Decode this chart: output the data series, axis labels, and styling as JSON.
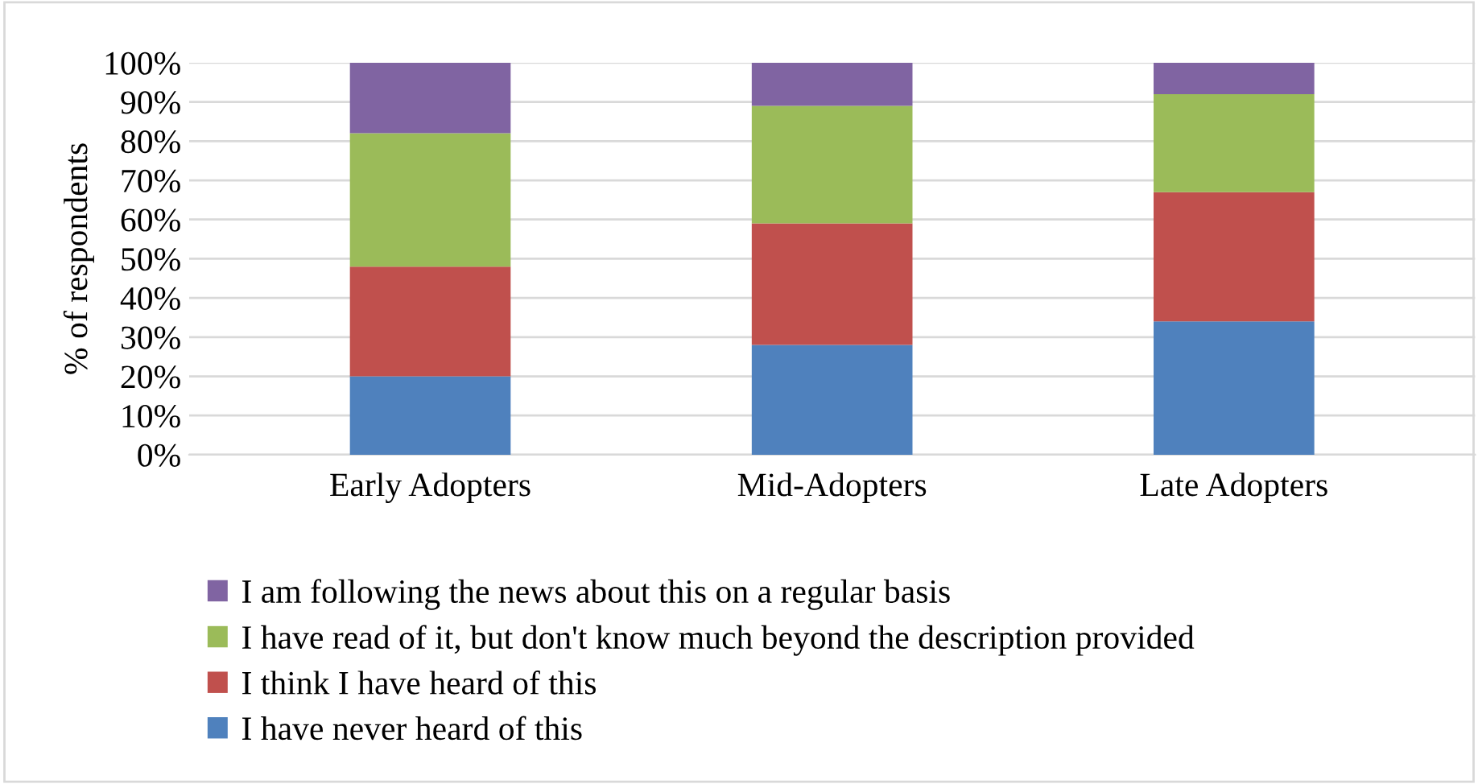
{
  "chart_data": {
    "type": "bar",
    "stacked": true,
    "ylabel": "% of respondents",
    "categories": [
      "Early Adopters",
      "Mid-Adopters",
      "Late Adopters"
    ],
    "series": [
      {
        "name": "I have never heard of this",
        "color": "#4f81bd",
        "values": [
          20,
          28,
          34
        ]
      },
      {
        "name": "I think I have heard of this",
        "color": "#c0504d",
        "values": [
          28,
          31,
          33
        ]
      },
      {
        "name": "I have read of it, but don't know much beyond the description provided",
        "color": "#9bbb59",
        "values": [
          34,
          30,
          25
        ]
      },
      {
        "name": "I am following the news about this on a regular basis",
        "color": "#8064a2",
        "values": [
          18,
          11,
          8
        ]
      }
    ],
    "ylim": [
      0,
      100
    ],
    "yticks": [
      {
        "value": 0,
        "label": "0%"
      },
      {
        "value": 10,
        "label": "10%"
      },
      {
        "value": 20,
        "label": "20%"
      },
      {
        "value": 30,
        "label": "30%"
      },
      {
        "value": 40,
        "label": "40%"
      },
      {
        "value": 50,
        "label": "50%"
      },
      {
        "value": 60,
        "label": "60%"
      },
      {
        "value": 70,
        "label": "70%"
      },
      {
        "value": 80,
        "label": "80%"
      },
      {
        "value": 90,
        "label": "90%"
      },
      {
        "value": 100,
        "label": "100%"
      }
    ],
    "grid": "y",
    "legend": "bottom"
  }
}
